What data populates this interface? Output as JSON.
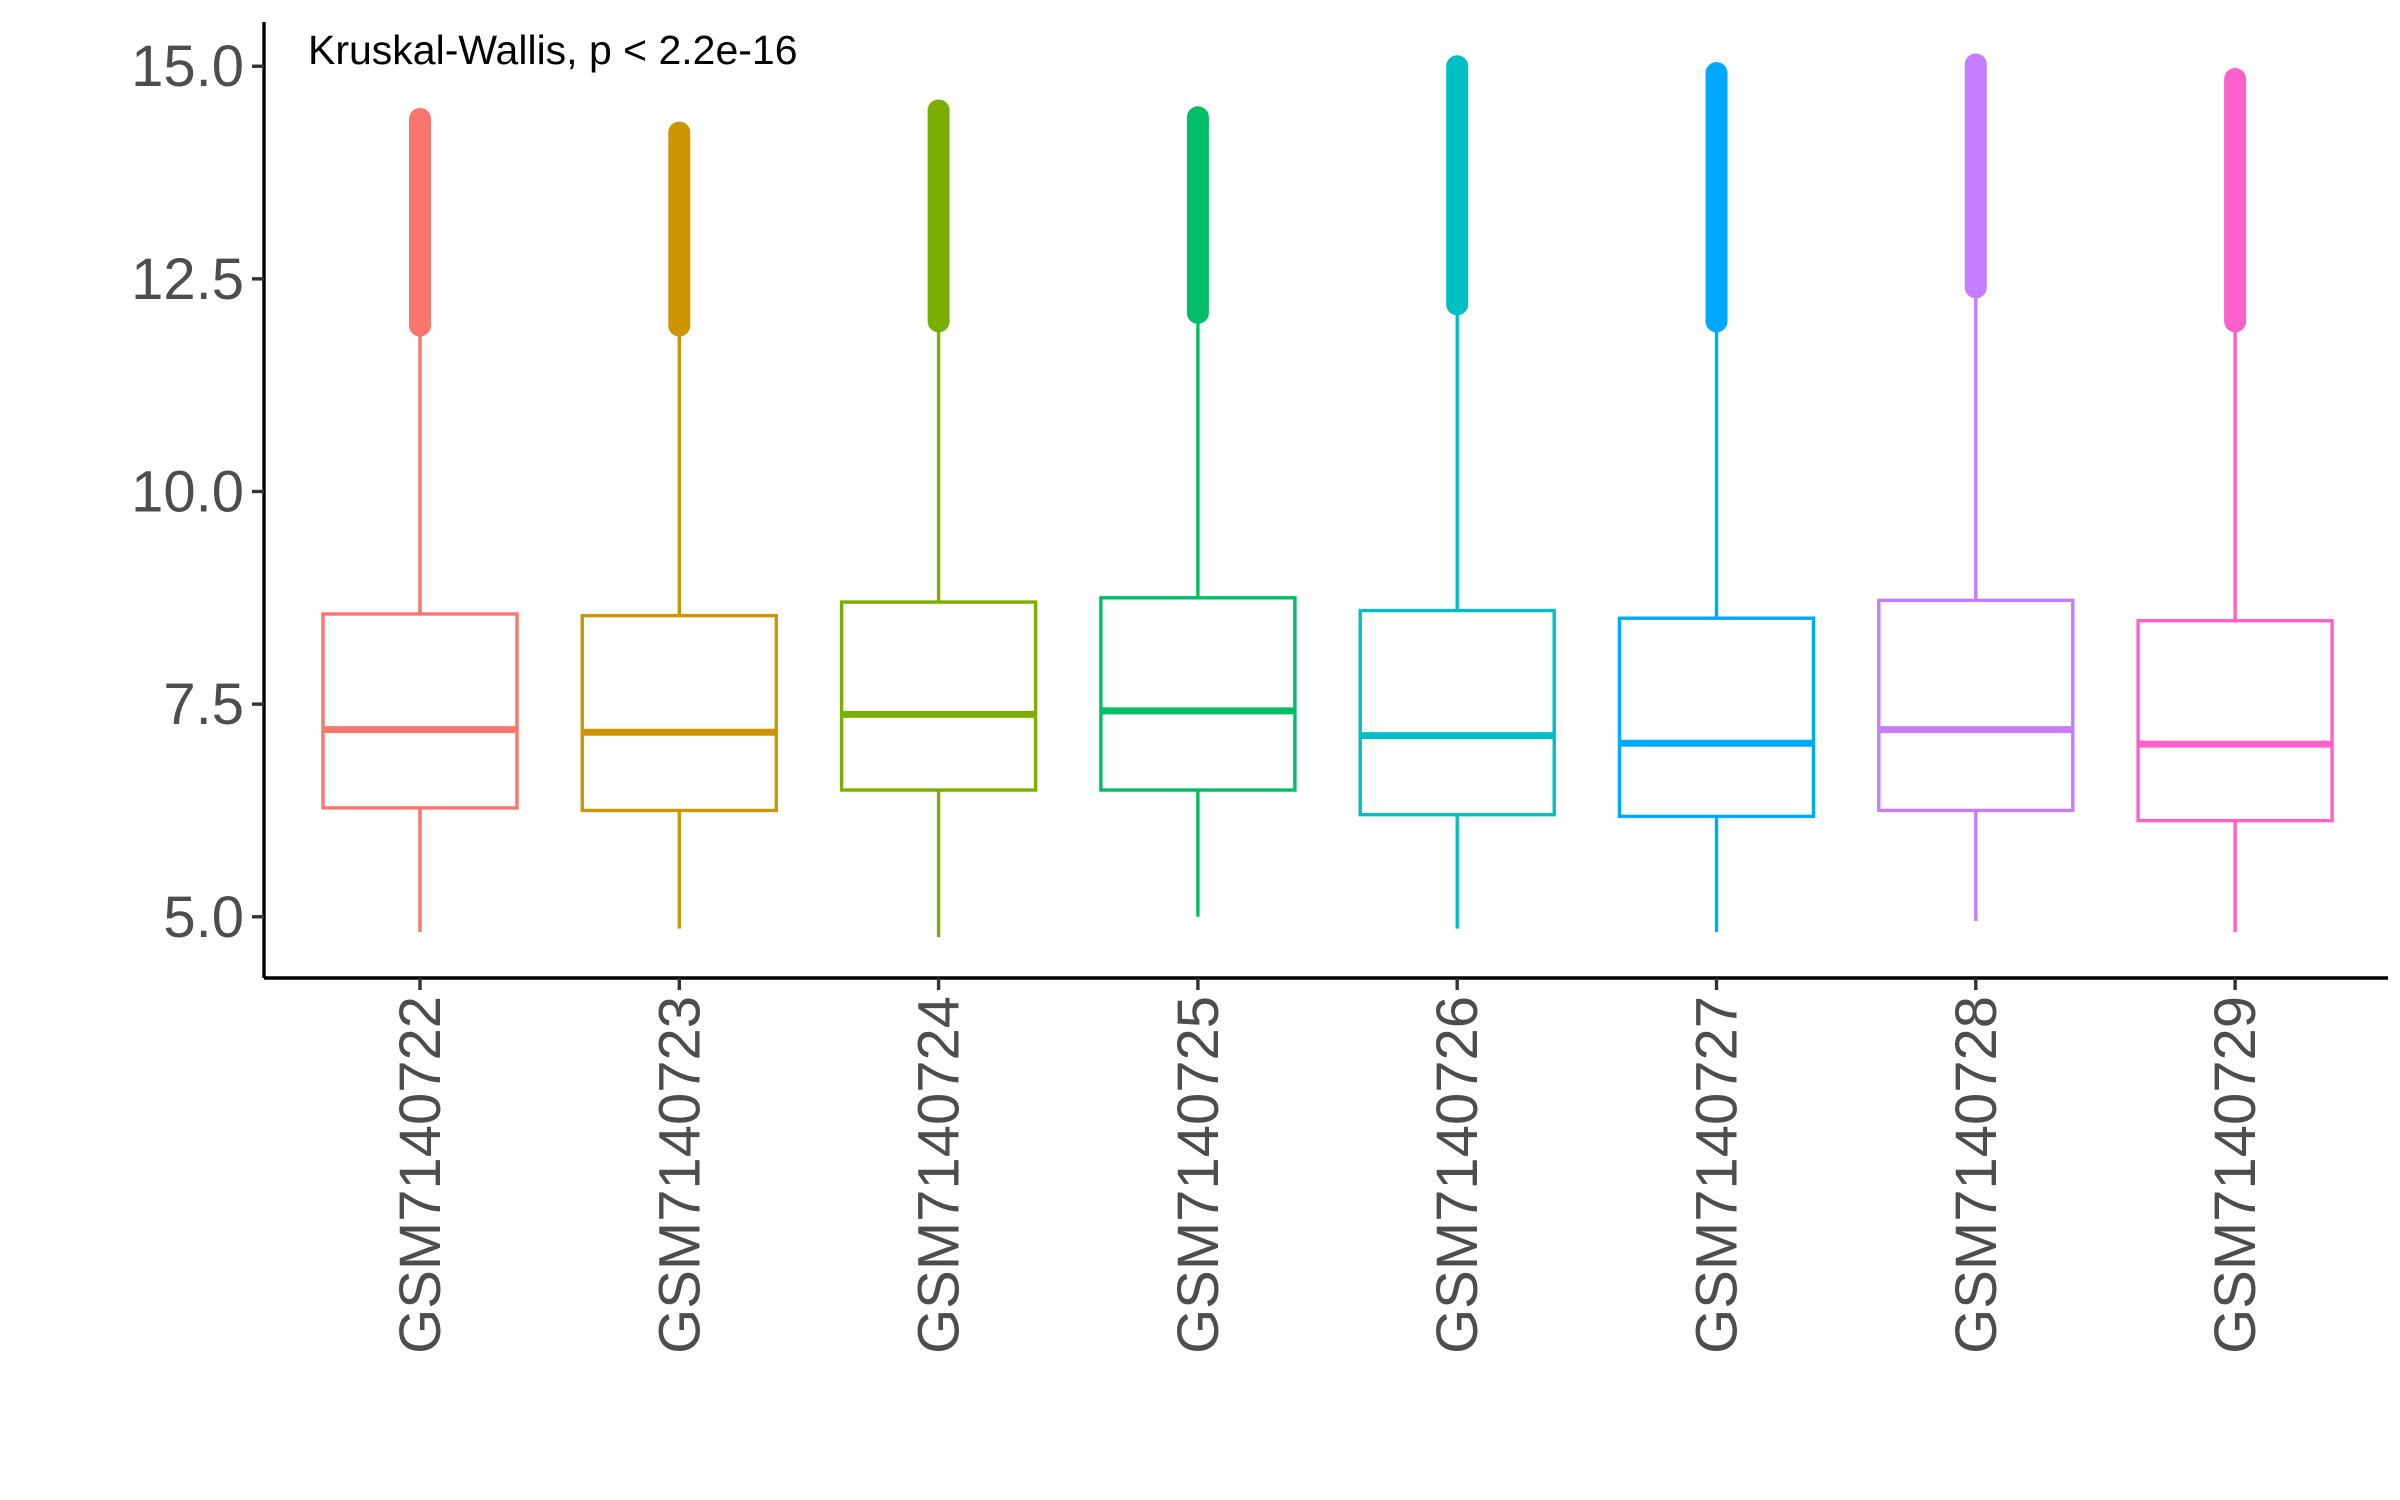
{
  "chart_data": {
    "type": "boxplot",
    "title": "",
    "xlabel": "",
    "ylabel": "",
    "annotation": "Kruskal-Wallis, p < 2.2e-16",
    "ylim": [
      4.28,
      15.52
    ],
    "yticks": [
      5.0,
      7.5,
      10.0,
      12.5,
      15.0
    ],
    "ytick_labels": [
      "5.0",
      "7.5",
      "10.0",
      "12.5",
      "15.0"
    ],
    "legend": "none",
    "grid": false,
    "categories": [
      "GSM7140722",
      "GSM7140723",
      "GSM7140724",
      "GSM7140725",
      "GSM7140726",
      "GSM7140727",
      "GSM7140728",
      "GSM7140729"
    ],
    "series": [
      {
        "name": "GSM7140722",
        "color": "#F8766D",
        "whisker_low": 4.82,
        "q1": 6.28,
        "median": 7.2,
        "q3": 8.56,
        "whisker_high": 11.9,
        "outlier_min": 11.95,
        "outlier_max": 14.38
      },
      {
        "name": "GSM7140723",
        "color": "#CD9600",
        "whisker_low": 4.86,
        "q1": 6.25,
        "median": 7.17,
        "q3": 8.54,
        "whisker_high": 11.9,
        "outlier_min": 11.95,
        "outlier_max": 14.22
      },
      {
        "name": "GSM7140724",
        "color": "#7CAE00",
        "whisker_low": 4.76,
        "q1": 6.49,
        "median": 7.38,
        "q3": 8.7,
        "whisker_high": 11.95,
        "outlier_min": 12.0,
        "outlier_max": 14.48
      },
      {
        "name": "GSM7140725",
        "color": "#00BE67",
        "whisker_low": 5.0,
        "q1": 6.49,
        "median": 7.42,
        "q3": 8.75,
        "whisker_high": 12.05,
        "outlier_min": 12.1,
        "outlier_max": 14.4
      },
      {
        "name": "GSM7140726",
        "color": "#00BFC4",
        "whisker_low": 4.86,
        "q1": 6.2,
        "median": 7.13,
        "q3": 8.6,
        "whisker_high": 12.15,
        "outlier_min": 12.2,
        "outlier_max": 15.0
      },
      {
        "name": "GSM7140727",
        "color": "#00A9FF",
        "whisker_low": 4.82,
        "q1": 6.18,
        "median": 7.04,
        "q3": 8.51,
        "whisker_high": 11.95,
        "outlier_min": 12.0,
        "outlier_max": 14.92
      },
      {
        "name": "GSM7140728",
        "color": "#C77CFF",
        "whisker_low": 4.95,
        "q1": 6.25,
        "median": 7.2,
        "q3": 8.72,
        "whisker_high": 12.35,
        "outlier_min": 12.4,
        "outlier_max": 15.02
      },
      {
        "name": "GSM7140729",
        "color": "#FF61CC",
        "whisker_low": 4.82,
        "q1": 6.13,
        "median": 7.03,
        "q3": 8.48,
        "whisker_high": 11.95,
        "outlier_min": 12.0,
        "outlier_max": 14.85
      }
    ]
  }
}
